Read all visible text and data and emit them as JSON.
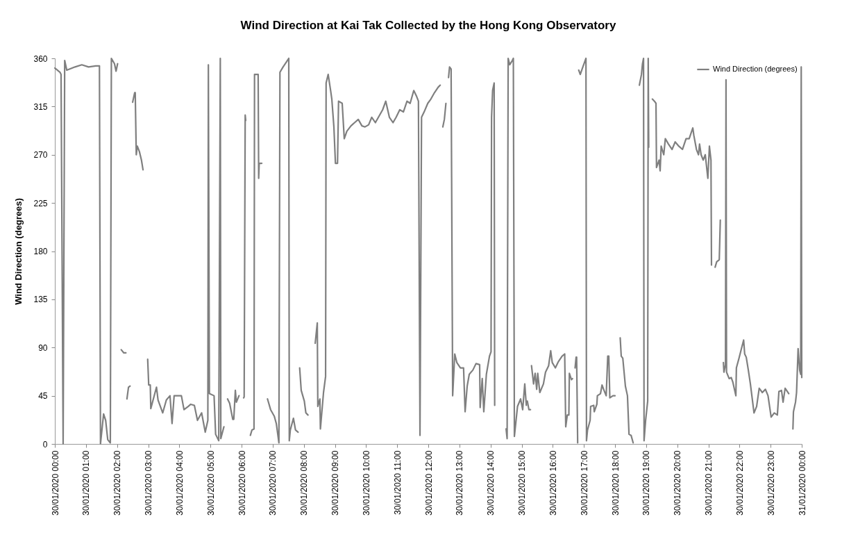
{
  "chart_data": {
    "type": "line",
    "title": "Wind Direction at Kai Tak Collected by the Hong Kong Observatory",
    "ylabel": "Wind Direction (degrees)",
    "xlim": [
      "2020-01-30T00:00",
      "2020-01-31T00:00"
    ],
    "xticks": [
      {
        "value": "2020-01-30T00:00",
        "label": "30/01/2020 00:00"
      },
      {
        "value": "2020-01-30T01:00",
        "label": "30/01/2020 01:00"
      },
      {
        "value": "2020-01-30T02:00",
        "label": "30/01/2020 02:00"
      },
      {
        "value": "2020-01-30T03:00",
        "label": "30/01/2020 03:00"
      },
      {
        "value": "2020-01-30T04:00",
        "label": "30/01/2020 04:00"
      },
      {
        "value": "2020-01-30T05:00",
        "label": "30/01/2020 05:00"
      },
      {
        "value": "2020-01-30T06:00",
        "label": "30/01/2020 06:00"
      },
      {
        "value": "2020-01-30T07:00",
        "label": "30/01/2020 07:00"
      },
      {
        "value": "2020-01-30T08:00",
        "label": "30/01/2020 08:00"
      },
      {
        "value": "2020-01-30T09:00",
        "label": "30/01/2020 09:00"
      },
      {
        "value": "2020-01-30T10:00",
        "label": "30/01/2020 10:00"
      },
      {
        "value": "2020-01-30T11:00",
        "label": "30/01/2020 11:00"
      },
      {
        "value": "2020-01-30T12:00",
        "label": "30/01/2020 12:00"
      },
      {
        "value": "2020-01-30T13:00",
        "label": "30/01/2020 13:00"
      },
      {
        "value": "2020-01-30T14:00",
        "label": "30/01/2020 14:00"
      },
      {
        "value": "2020-01-30T15:00",
        "label": "30/01/2020 15:00"
      },
      {
        "value": "2020-01-30T16:00",
        "label": "30/01/2020 16:00"
      },
      {
        "value": "2020-01-30T17:00",
        "label": "30/01/2020 17:00"
      },
      {
        "value": "2020-01-30T18:00",
        "label": "30/01/2020 18:00"
      },
      {
        "value": "2020-01-30T19:00",
        "label": "30/01/2020 19:00"
      },
      {
        "value": "2020-01-30T20:00",
        "label": "30/01/2020 20:00"
      },
      {
        "value": "2020-01-30T21:00",
        "label": "30/01/2020 21:00"
      },
      {
        "value": "2020-01-30T22:00",
        "label": "30/01/2020 22:00"
      },
      {
        "value": "2020-01-30T23:00",
        "label": "30/01/2020 23:00"
      },
      {
        "value": "2020-01-31T00:00",
        "label": "31/01/2020 00:00"
      }
    ],
    "ylim": [
      0,
      360
    ],
    "yticks": [
      0,
      45,
      90,
      135,
      180,
      225,
      270,
      315,
      360
    ],
    "grid": false,
    "legend": "top right",
    "marker": "none",
    "line_style": "solid",
    "x": [
      "2020-01-30T00:00",
      "2020-01-30T00:10",
      "2020-01-30T00:12",
      "2020-01-30T00:16",
      "2020-01-30T00:19",
      "2020-01-30T00:23",
      "2020-01-30T00:39",
      "2020-01-30T00:52",
      "2020-01-30T01:05",
      "2020-01-30T01:19",
      "2020-01-30T01:26",
      "2020-01-30T01:28",
      "2020-01-30T01:34",
      "2020-01-30T01:38",
      "2020-01-30T01:42",
      "2020-01-30T01:47",
      "2020-01-30T01:49",
      "2020-01-30T01:55",
      "2020-01-30T01:58",
      "2020-01-30T02:01",
      "2020-01-30T02:05",
      "2020-01-30T02:08",
      "2020-01-30T02:13",
      "2020-01-30T02:17",
      "2020-01-30T02:18",
      "2020-01-30T02:19",
      "2020-01-30T02:22",
      "2020-01-30T02:25",
      "2020-01-30T02:27",
      "2020-01-30T02:30",
      "2020-01-30T02:34",
      "2020-01-30T02:35",
      "2020-01-30T02:37",
      "2020-01-30T02:39",
      "2020-01-30T02:43",
      "2020-01-30T02:47",
      "2020-01-30T02:50",
      "2020-01-30T02:55",
      "2020-01-30T02:59",
      "2020-01-30T03:01",
      "2020-01-30T03:04",
      "2020-01-30T03:05",
      "2020-01-30T03:16",
      "2020-01-30T03:19",
      "2020-01-30T03:28",
      "2020-01-30T03:35",
      "2020-01-30T03:42",
      "2020-01-30T03:46",
      "2020-01-30T03:50",
      "2020-01-30T03:59",
      "2020-01-30T04:04",
      "2020-01-30T04:09",
      "2020-01-30T04:17",
      "2020-01-30T04:22",
      "2020-01-30T04:29",
      "2020-01-30T04:35",
      "2020-01-30T04:43",
      "2020-01-30T04:50",
      "2020-01-30T04:55",
      "2020-01-30T04:56",
      "2020-01-30T04:58",
      "2020-01-30T05:07",
      "2020-01-30T05:10",
      "2020-01-30T05:16",
      "2020-01-30T05:19",
      "2020-01-30T05:20",
      "2020-01-30T05:26",
      "2020-01-30T05:30",
      "2020-01-30T05:33",
      "2020-01-30T05:37",
      "2020-01-30T05:43",
      "2020-01-30T05:45",
      "2020-01-30T05:48",
      "2020-01-30T05:50",
      "2020-01-30T05:55",
      "2020-01-30T05:59",
      "2020-01-30T06:04",
      "2020-01-30T06:05",
      "2020-01-30T06:07",
      "2020-01-30T06:08",
      "2020-01-30T06:13",
      "2020-01-30T06:17",
      "2020-01-30T06:20",
      "2020-01-30T06:24",
      "2020-01-30T06:25",
      "2020-01-30T06:32",
      "2020-01-30T06:33",
      "2020-01-30T06:34",
      "2020-01-30T06:35",
      "2020-01-30T06:39",
      "2020-01-30T06:44",
      "2020-01-30T06:50",
      "2020-01-30T06:56",
      "2020-01-30T07:03",
      "2020-01-30T07:07",
      "2020-01-30T07:12",
      "2020-01-30T07:14",
      "2020-01-30T07:20",
      "2020-01-30T07:27",
      "2020-01-30T07:31",
      "2020-01-30T07:32",
      "2020-01-30T07:34",
      "2020-01-30T07:40",
      "2020-01-30T07:44",
      "2020-01-30T07:49",
      "2020-01-30T07:50",
      "2020-01-30T07:52",
      "2020-01-30T07:55",
      "2020-01-30T08:01",
      "2020-01-30T08:04",
      "2020-01-30T08:08",
      "2020-01-30T08:15",
      "2020-01-30T08:22",
      "2020-01-30T08:26",
      "2020-01-30T08:27",
      "2020-01-30T08:31",
      "2020-01-30T08:32",
      "2020-01-30T08:38",
      "2020-01-30T08:42",
      "2020-01-30T08:43",
      "2020-01-30T08:47",
      "2020-01-30T08:52",
      "2020-01-30T08:54",
      "2020-01-30T08:58",
      "2020-01-30T09:01",
      "2020-01-30T09:05",
      "2020-01-30T09:07",
      "2020-01-30T09:14",
      "2020-01-30T09:18",
      "2020-01-30T09:23",
      "2020-01-30T09:31",
      "2020-01-30T09:38",
      "2020-01-30T09:45",
      "2020-01-30T09:52",
      "2020-01-30T09:58",
      "2020-01-30T10:05",
      "2020-01-30T10:11",
      "2020-01-30T10:18",
      "2020-01-30T10:25",
      "2020-01-30T10:32",
      "2020-01-30T10:38",
      "2020-01-30T10:45",
      "2020-01-30T10:52",
      "2020-01-30T10:58",
      "2020-01-30T11:05",
      "2020-01-30T11:12",
      "2020-01-30T11:19",
      "2020-01-30T11:25",
      "2020-01-30T11:32",
      "2020-01-30T11:37",
      "2020-01-30T11:41",
      "2020-01-30T11:44",
      "2020-01-30T11:47",
      "2020-01-30T11:52",
      "2020-01-30T11:59",
      "2020-01-30T12:05",
      "2020-01-30T12:12",
      "2020-01-30T12:19",
      "2020-01-30T12:23",
      "2020-01-30T12:25",
      "2020-01-30T12:28",
      "2020-01-30T12:31",
      "2020-01-30T12:34",
      "2020-01-30T12:36",
      "2020-01-30T12:39",
      "2020-01-30T12:41",
      "2020-01-30T12:44",
      "2020-01-30T12:47",
      "2020-01-30T12:51",
      "2020-01-30T12:55",
      "2020-01-30T13:02",
      "2020-01-30T13:08",
      "2020-01-30T13:11",
      "2020-01-30T13:15",
      "2020-01-30T13:19",
      "2020-01-30T13:26",
      "2020-01-30T13:32",
      "2020-01-30T13:39",
      "2020-01-30T13:40",
      "2020-01-30T13:44",
      "2020-01-30T13:47",
      "2020-01-30T13:52",
      "2020-01-30T13:58",
      "2020-01-30T14:01",
      "2020-01-30T14:02",
      "2020-01-30T14:04",
      "2020-01-30T14:07",
      "2020-01-30T14:08",
      "2020-01-30T14:18",
      "2020-01-30T14:30",
      "2020-01-30T14:32",
      "2020-01-30T14:34",
      "2020-01-30T14:37",
      "2020-01-30T14:42",
      "2020-01-30T14:44",
      "2020-01-30T14:46",
      "2020-01-30T14:52",
      "2020-01-30T14:58",
      "2020-01-30T15:02",
      "2020-01-30T15:06",
      "2020-01-30T15:09",
      "2020-01-30T15:10",
      "2020-01-30T15:11",
      "2020-01-30T15:14",
      "2020-01-30T15:17",
      "2020-01-30T15:18",
      "2020-01-30T15:19",
      "2020-01-30T15:23",
      "2020-01-30T15:26",
      "2020-01-30T15:29",
      "2020-01-30T15:31",
      "2020-01-30T15:35",
      "2020-01-30T15:42",
      "2020-01-30T15:46",
      "2020-01-30T15:52",
      "2020-01-30T15:56",
      "2020-01-30T15:59",
      "2020-01-30T16:05",
      "2020-01-30T16:11",
      "2020-01-30T16:18",
      "2020-01-30T16:23",
      "2020-01-30T16:25",
      "2020-01-30T16:28",
      "2020-01-30T16:31",
      "2020-01-30T16:32",
      "2020-01-30T16:36",
      "2020-01-30T16:38",
      "2020-01-30T16:41",
      "2020-01-30T16:43",
      "2020-01-30T16:45",
      "2020-01-30T16:46",
      "2020-01-30T16:48",
      "2020-01-30T16:49",
      "2020-01-30T16:50",
      "2020-01-30T16:53",
      "2020-01-30T16:58",
      "2020-01-30T17:04",
      "2020-01-30T17:05",
      "2020-01-30T17:07",
      "2020-01-30T17:12",
      "2020-01-30T17:13",
      "2020-01-30T17:19",
      "2020-01-30T17:20",
      "2020-01-30T17:25",
      "2020-01-30T17:26",
      "2020-01-30T17:32",
      "2020-01-30T17:35",
      "2020-01-30T17:38",
      "2020-01-30T17:43",
      "2020-01-30T17:46",
      "2020-01-30T17:48",
      "2020-01-30T17:50",
      "2020-01-30T17:56",
      "2020-01-30T18:00",
      "2020-01-30T18:05",
      "2020-01-30T18:10",
      "2020-01-30T18:12",
      "2020-01-30T18:15",
      "2020-01-30T18:20",
      "2020-01-30T18:24",
      "2020-01-30T18:27",
      "2020-01-30T18:31",
      "2020-01-30T18:35",
      "2020-01-30T18:41",
      "2020-01-30T18:47",
      "2020-01-30T18:51",
      "2020-01-30T18:53",
      "2020-01-30T18:55",
      "2020-01-30T18:56",
      "2020-01-30T18:59",
      "2020-01-30T19:03",
      "2020-01-30T19:04",
      "2020-01-30T19:05",
      "2020-01-30T19:09",
      "2020-01-30T19:12",
      "2020-01-30T19:16",
      "2020-01-30T19:19",
      "2020-01-30T19:20",
      "2020-01-30T19:25",
      "2020-01-30T19:27",
      "2020-01-30T19:29",
      "2020-01-30T19:34",
      "2020-01-30T19:37",
      "2020-01-30T19:43",
      "2020-01-30T19:50",
      "2020-01-30T19:56",
      "2020-01-30T20:03",
      "2020-01-30T20:10",
      "2020-01-30T20:17",
      "2020-01-30T20:23",
      "2020-01-30T20:30",
      "2020-01-30T20:32",
      "2020-01-30T20:37",
      "2020-01-30T20:41",
      "2020-01-30T20:43",
      "2020-01-30T20:46",
      "2020-01-30T20:50",
      "2020-01-30T20:54",
      "2020-01-30T20:59",
      "2020-01-30T21:02",
      "2020-01-30T21:05",
      "2020-01-30T21:06",
      "2020-01-30T21:09",
      "2020-01-30T21:13",
      "2020-01-30T21:16",
      "2020-01-30T21:21",
      "2020-01-30T21:23",
      "2020-01-30T21:26",
      "2020-01-30T21:29",
      "2020-01-30T21:30",
      "2020-01-30T21:33",
      "2020-01-30T21:34",
      "2020-01-30T21:35",
      "2020-01-30T21:40",
      "2020-01-30T21:44",
      "2020-01-30T21:47",
      "2020-01-30T21:53",
      "2020-01-30T21:54",
      "2020-01-30T21:59",
      "2020-01-30T22:08",
      "2020-01-30T22:10",
      "2020-01-30T22:13",
      "2020-01-30T22:17",
      "2020-01-30T22:21",
      "2020-01-30T22:28",
      "2020-01-30T22:33",
      "2020-01-30T22:38",
      "2020-01-30T22:44",
      "2020-01-30T22:50",
      "2020-01-30T22:55",
      "2020-01-30T23:01",
      "2020-01-30T23:07",
      "2020-01-30T23:13",
      "2020-01-30T23:16",
      "2020-01-30T23:21",
      "2020-01-30T23:24",
      "2020-01-30T23:28",
      "2020-01-30T23:35",
      "2020-01-30T23:39",
      "2020-01-30T23:43",
      "2020-01-30T23:44",
      "2020-01-30T23:48",
      "2020-01-30T23:50",
      "2020-01-30T23:53",
      "2020-01-30T23:56",
      "2020-01-30T23:58",
      "2020-01-30T23:59",
      "2020-01-31T00:00"
    ],
    "series": [
      {
        "name": "Wind Direction (degrees)",
        "color": "#7f7f7f",
        "values": [
          351,
          347,
          345,
          0,
          358,
          349,
          352,
          354,
          352,
          353,
          353,
          0,
          28,
          22,
          4,
          1,
          360,
          355,
          348,
          355,
          null,
          88,
          85,
          85,
          null,
          42,
          53,
          54,
          null,
          319,
          328,
          328,
          270,
          278,
          273,
          265,
          256,
          null,
          79,
          55,
          55,
          33,
          53,
          41,
          29,
          41,
          45,
          19,
          45,
          45,
          45,
          32,
          35,
          37,
          36,
          22,
          29,
          11,
          22,
          354,
          47,
          45,
          9,
          3,
          360,
          5,
          16,
          null,
          42,
          38,
          23,
          23,
          50,
          39,
          45,
          null,
          43,
          44,
          307,
          302,
          null,
          8,
          13,
          14,
          345,
          345,
          248,
          262,
          262,
          262,
          null,
          42,
          32,
          26,
          19,
          1,
          347,
          352,
          357,
          360,
          3,
          13,
          24,
          13,
          11,
          null,
          71,
          50,
          40,
          29,
          27,
          null,
          94,
          113,
          35,
          42,
          14,
          48,
          63,
          337,
          345,
          329,
          322,
          296,
          262,
          262,
          320,
          318,
          285,
          292,
          297,
          300,
          303,
          297,
          296,
          298,
          305,
          300,
          306,
          312,
          320,
          305,
          300,
          305,
          312,
          310,
          320,
          318,
          330,
          325,
          320,
          8,
          305,
          310,
          318,
          322,
          328,
          333,
          335,
          null,
          296,
          303,
          318,
          null,
          342,
          352,
          350,
          45,
          84,
          76,
          71,
          71,
          30,
          54,
          65,
          69,
          75,
          74,
          34,
          61,
          30,
          65,
          82,
          86,
          305,
          330,
          337,
          36,
          null,
          14,
          5,
          360,
          354,
          358,
          360,
          7,
          35,
          42,
          32,
          56,
          36,
          null,
          40,
          32,
          32,
          null,
          73,
          56,
          66,
          51,
          66,
          48,
          56,
          67,
          73,
          87,
          76,
          71,
          77,
          82,
          84,
          16,
          27,
          27,
          66,
          60,
          61,
          null,
          71,
          81,
          81,
          1,
          null,
          349,
          345,
          352,
          360,
          3,
          13,
          22,
          35,
          36,
          30,
          37,
          45,
          47,
          55,
          51,
          45,
          82,
          82,
          43,
          45,
          45,
          null,
          99,
          82,
          80,
          54,
          45,
          9,
          8,
          1,
          null,
          335,
          345,
          355,
          360,
          3,
          22,
          40,
          360,
          277,
          null,
          322,
          320,
          318,
          258,
          265,
          255,
          278,
          270,
          285,
          280,
          275,
          282,
          278,
          275,
          285,
          285,
          295,
          288,
          275,
          270,
          280,
          270,
          265,
          270,
          248,
          278,
          265,
          167,
          null,
          165,
          170,
          172,
          209,
          null,
          76,
          67,
          74,
          340,
          67,
          61,
          62,
          58,
          45,
          71,
          80,
          97,
          84,
          81,
          69,
          56,
          29,
          35,
          52,
          48,
          51,
          45,
          25,
          29,
          27,
          49,
          50,
          39,
          52,
          47,
          null,
          14,
          30,
          39,
          48,
          89,
          69,
          65,
          352,
          62
        ]
      }
    ]
  }
}
